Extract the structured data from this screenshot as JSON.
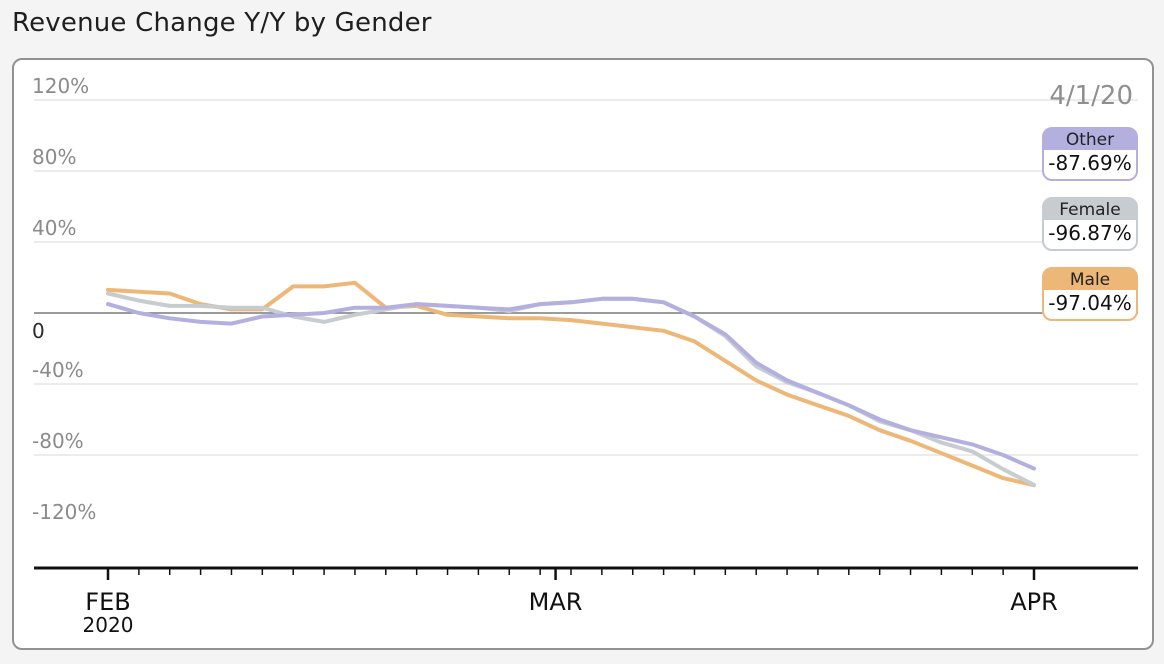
{
  "title": "Revenue Change Y/Y by Gender",
  "colors": {
    "Other": "#b3b0e0",
    "Female": "#c7ccd0",
    "Male": "#ecb777",
    "grid": "#e6e6e6",
    "zero": "#7a7a7a",
    "axis": "#111111"
  },
  "chart_data": {
    "type": "line",
    "title": "Revenue Change Y/Y by Gender",
    "xlabel": "",
    "ylabel": "",
    "ylim": [
      -120,
      120
    ],
    "yticks": [
      120,
      80,
      40,
      0,
      -40,
      -80,
      -120
    ],
    "ytick_labels": [
      "120%",
      "80%",
      "40%",
      "0",
      "-40%",
      "-80%",
      "-120%"
    ],
    "x_range": [
      "2020-02-01",
      "2020-04-01"
    ],
    "xticks": [
      {
        "date": "2020-02-01",
        "label": "FEB",
        "sublabel": "2020"
      },
      {
        "date": "2020-03-01",
        "label": "MAR",
        "sublabel": ""
      },
      {
        "date": "2020-04-01",
        "label": "APR",
        "sublabel": ""
      }
    ],
    "x": [
      "2020-02-01",
      "2020-02-03",
      "2020-02-05",
      "2020-02-07",
      "2020-02-09",
      "2020-02-11",
      "2020-02-13",
      "2020-02-15",
      "2020-02-17",
      "2020-02-19",
      "2020-02-21",
      "2020-02-23",
      "2020-02-25",
      "2020-02-27",
      "2020-02-29",
      "2020-03-02",
      "2020-03-04",
      "2020-03-06",
      "2020-03-08",
      "2020-03-10",
      "2020-03-12",
      "2020-03-14",
      "2020-03-16",
      "2020-03-18",
      "2020-03-20",
      "2020-03-22",
      "2020-03-24",
      "2020-03-26",
      "2020-03-28",
      "2020-03-30",
      "2020-04-01"
    ],
    "highlight_date": "4/1/20",
    "series": [
      {
        "name": "Other",
        "values": [
          5,
          0,
          -3,
          -5,
          -6,
          -2,
          -1,
          0,
          3,
          3,
          5,
          4,
          3,
          2,
          5,
          6,
          8,
          8,
          6,
          -2,
          -12,
          -28,
          -38,
          -45,
          -52,
          -60,
          -66,
          -70,
          -74,
          -80,
          -87.69
        ]
      },
      {
        "name": "Female",
        "values": [
          11,
          7,
          4,
          4,
          3,
          3,
          -2,
          -5,
          -1,
          2,
          5,
          4,
          3,
          1,
          5,
          6,
          8,
          8,
          6,
          -2,
          -13,
          -30,
          -39,
          -45,
          -52,
          -61,
          -66,
          -73,
          -78,
          -88,
          -96.87
        ]
      },
      {
        "name": "Male",
        "values": [
          13,
          12,
          11,
          5,
          2,
          2,
          15,
          15,
          17,
          3,
          4,
          -1,
          -2,
          -3,
          -3,
          -4,
          -6,
          -8,
          -10,
          -16,
          -27,
          -38,
          -46,
          -52,
          -58,
          -66,
          -72,
          -79,
          -86,
          -93,
          -97.04
        ]
      }
    ]
  },
  "legend": [
    {
      "name": "Other",
      "value": "-87.69%"
    },
    {
      "name": "Female",
      "value": "-96.87%"
    },
    {
      "name": "Male",
      "value": "-97.04%"
    }
  ]
}
